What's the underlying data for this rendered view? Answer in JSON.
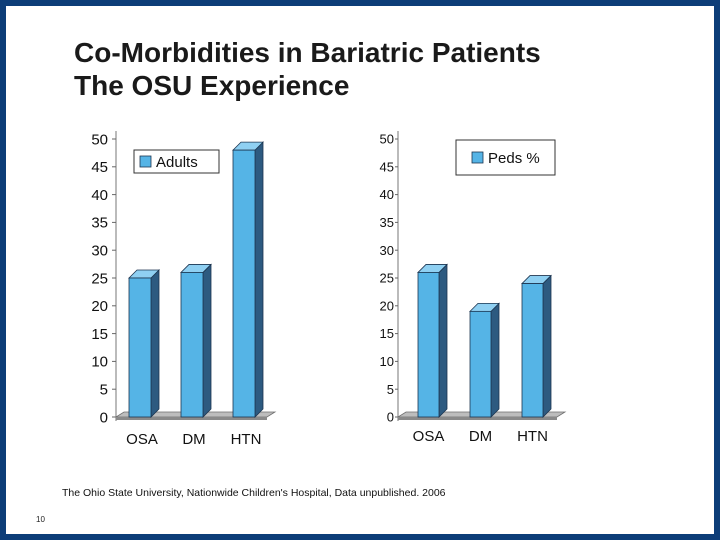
{
  "slide": {
    "title_line1": "Co-Morbidities in Bariatric Patients",
    "title_line2": "The OSU Experience",
    "source": "The Ohio State University, Nationwide Children's Hospital, Data unpublished. 2006",
    "slide_number": "10"
  },
  "colors": {
    "frame": "#0d3d78",
    "bar_front": "#55b4e6",
    "bar_side": "#2d5a80",
    "bar_top": "#8fd0f2",
    "floor": "#8a8a8a"
  },
  "chart_data": [
    {
      "type": "bar",
      "title": "",
      "categories": [
        "OSA",
        "DM",
        "HTN"
      ],
      "series": [
        {
          "name": "Adults",
          "values": [
            25,
            26,
            48
          ]
        }
      ],
      "ylim": [
        0,
        50
      ],
      "yticks": [
        "0",
        "5",
        "10",
        "15",
        "20",
        "25",
        "30",
        "35",
        "40",
        "45",
        "50"
      ],
      "xlabel": "",
      "ylabel": "",
      "legend": "top-left"
    },
    {
      "type": "bar",
      "title": "",
      "categories": [
        "OSA",
        "DM",
        "HTN"
      ],
      "series": [
        {
          "name": "Peds %",
          "values": [
            26,
            19,
            24
          ]
        }
      ],
      "ylim": [
        0,
        50
      ],
      "yticks": [
        "0",
        "5",
        "10",
        "15",
        "20",
        "25",
        "30",
        "35",
        "40",
        "45",
        "50"
      ],
      "xlabel": "",
      "ylabel": "",
      "legend": "top-right"
    }
  ]
}
